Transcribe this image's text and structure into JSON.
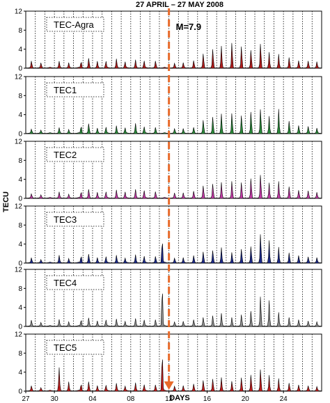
{
  "chart_data": {
    "type": "area",
    "title": "27 APRIL – 27 MAY 2008",
    "xlabel": "DAYS",
    "ylabel": "TECU",
    "ylim": [
      0,
      12
    ],
    "yticks": [
      0,
      4,
      8,
      12
    ],
    "xlim": [
      0,
      31
    ],
    "x_ticks": [
      {
        "day": 0,
        "label": "27"
      },
      {
        "day": 3,
        "label": "30"
      },
      {
        "day": 7,
        "label": "04"
      },
      {
        "day": 11,
        "label": "08"
      },
      {
        "day": 15,
        "label": "12"
      },
      {
        "day": 19,
        "label": "16"
      },
      {
        "day": 23,
        "label": "20"
      },
      {
        "day": 27,
        "label": "24"
      }
    ],
    "grid": "dotted vertical lines at each day",
    "event": {
      "label": "M=7.9",
      "day": 15,
      "color": "#e86a2a"
    },
    "series": [
      {
        "name": "TEC-Agra",
        "color": "#b01c1c",
        "peaks": [
          [
            0.6,
            1.4
          ],
          [
            1.6,
            1.0
          ],
          [
            3.5,
            1.3
          ],
          [
            4.5,
            1.0
          ],
          [
            5.8,
            1.4
          ],
          [
            6.6,
            2.0
          ],
          [
            7.5,
            1.3
          ],
          [
            8.4,
            1.4
          ],
          [
            9.5,
            1.8
          ],
          [
            10.4,
            1.3
          ],
          [
            11.5,
            1.6
          ],
          [
            12.4,
            1.5
          ],
          [
            13.6,
            1.4
          ],
          [
            15.6,
            0.9
          ],
          [
            16.5,
            1.0
          ],
          [
            17.6,
            1.5
          ],
          [
            18.6,
            3.0
          ],
          [
            19.6,
            4.0
          ],
          [
            20.5,
            4.5
          ],
          [
            21.6,
            5.4
          ],
          [
            22.6,
            4.6
          ],
          [
            23.6,
            3.8
          ],
          [
            24.6,
            5.2
          ],
          [
            25.5,
            3.2
          ],
          [
            26.5,
            2.8
          ],
          [
            27.6,
            2.2
          ],
          [
            28.6,
            1.5
          ],
          [
            29.6,
            1.4
          ],
          [
            30.5,
            1.2
          ]
        ]
      },
      {
        "name": "TEC1",
        "color": "#2a8a3a",
        "peaks": [
          [
            0.6,
            0.8
          ],
          [
            1.6,
            0.6
          ],
          [
            3.5,
            1.1
          ],
          [
            4.5,
            0.7
          ],
          [
            5.8,
            1.6
          ],
          [
            6.6,
            2.0
          ],
          [
            7.5,
            1.0
          ],
          [
            8.4,
            1.3
          ],
          [
            9.5,
            1.5
          ],
          [
            10.4,
            1.2
          ],
          [
            11.5,
            2.0
          ],
          [
            12.4,
            1.4
          ],
          [
            13.6,
            1.2
          ],
          [
            15.6,
            0.9
          ],
          [
            16.5,
            0.9
          ],
          [
            17.6,
            1.2
          ],
          [
            18.6,
            2.8
          ],
          [
            19.6,
            3.5
          ],
          [
            20.5,
            4.0
          ],
          [
            21.6,
            4.3
          ],
          [
            22.6,
            3.8
          ],
          [
            23.6,
            4.6
          ],
          [
            24.6,
            5.2
          ],
          [
            25.5,
            3.5
          ],
          [
            26.5,
            5.0
          ],
          [
            27.6,
            2.6
          ],
          [
            28.6,
            1.6
          ],
          [
            29.6,
            1.4
          ],
          [
            30.5,
            1.0
          ]
        ]
      },
      {
        "name": "TEC2",
        "color": "#c23aa6",
        "peaks": [
          [
            0.6,
            0.8
          ],
          [
            1.6,
            0.6
          ],
          [
            3.5,
            1.2
          ],
          [
            4.5,
            0.7
          ],
          [
            5.8,
            1.4
          ],
          [
            6.6,
            1.8
          ],
          [
            7.5,
            1.1
          ],
          [
            8.4,
            1.3
          ],
          [
            9.5,
            1.6
          ],
          [
            10.4,
            1.3
          ],
          [
            11.5,
            1.7
          ],
          [
            12.4,
            1.6
          ],
          [
            13.6,
            1.3
          ],
          [
            15.6,
            1.0
          ],
          [
            16.5,
            1.0
          ],
          [
            17.6,
            1.4
          ],
          [
            18.6,
            2.6
          ],
          [
            19.6,
            3.0
          ],
          [
            20.5,
            3.2
          ],
          [
            21.6,
            3.6
          ],
          [
            22.6,
            3.3
          ],
          [
            23.6,
            4.2
          ],
          [
            24.6,
            5.0
          ],
          [
            25.5,
            3.1
          ],
          [
            26.5,
            3.4
          ],
          [
            27.6,
            2.4
          ],
          [
            28.6,
            1.6
          ],
          [
            29.6,
            1.5
          ],
          [
            30.5,
            1.1
          ]
        ]
      },
      {
        "name": "TEC3",
        "color": "#1c2a8a",
        "peaks": [
          [
            0.6,
            1.0
          ],
          [
            1.6,
            0.6
          ],
          [
            3.5,
            1.5
          ],
          [
            4.5,
            0.8
          ],
          [
            5.8,
            1.5
          ],
          [
            6.6,
            1.8
          ],
          [
            7.5,
            1.0
          ],
          [
            8.4,
            1.3
          ],
          [
            9.5,
            1.5
          ],
          [
            10.4,
            1.0
          ],
          [
            11.5,
            1.6
          ],
          [
            12.4,
            1.4
          ],
          [
            13.6,
            1.3
          ],
          [
            14.3,
            5.0
          ],
          [
            15.6,
            0.9
          ],
          [
            16.5,
            1.0
          ],
          [
            17.6,
            1.5
          ],
          [
            18.6,
            2.3
          ],
          [
            19.6,
            2.6
          ],
          [
            20.5,
            3.1
          ],
          [
            21.6,
            2.2
          ],
          [
            22.6,
            2.9
          ],
          [
            23.6,
            3.5
          ],
          [
            24.6,
            6.2
          ],
          [
            25.5,
            4.6
          ],
          [
            26.5,
            3.2
          ],
          [
            27.6,
            2.1
          ],
          [
            28.6,
            1.5
          ],
          [
            29.6,
            1.2
          ],
          [
            30.5,
            1.0
          ]
        ]
      },
      {
        "name": "TEC4",
        "color": "#8c8c8c",
        "peaks": [
          [
            0.6,
            1.2
          ],
          [
            1.6,
            0.7
          ],
          [
            3.5,
            1.3
          ],
          [
            4.5,
            0.8
          ],
          [
            5.8,
            1.4
          ],
          [
            6.6,
            1.7
          ],
          [
            7.5,
            1.0
          ],
          [
            8.4,
            1.3
          ],
          [
            9.5,
            1.4
          ],
          [
            10.4,
            1.0
          ],
          [
            11.5,
            1.5
          ],
          [
            12.4,
            1.3
          ],
          [
            13.6,
            1.3
          ],
          [
            14.3,
            8.5
          ],
          [
            15.6,
            0.8
          ],
          [
            16.5,
            0.9
          ],
          [
            17.6,
            1.3
          ],
          [
            18.6,
            1.8
          ],
          [
            19.6,
            2.2
          ],
          [
            20.5,
            2.6
          ],
          [
            21.6,
            1.8
          ],
          [
            22.6,
            2.4
          ],
          [
            23.6,
            3.2
          ],
          [
            24.6,
            6.4
          ],
          [
            25.5,
            5.3
          ],
          [
            26.5,
            2.8
          ],
          [
            27.6,
            1.8
          ],
          [
            28.6,
            1.3
          ],
          [
            29.6,
            1.0
          ],
          [
            30.5,
            0.8
          ]
        ]
      },
      {
        "name": "TEC5",
        "color": "#c21c1c",
        "peaks": [
          [
            0.6,
            1.0
          ],
          [
            1.6,
            0.6
          ],
          [
            3.5,
            4.8
          ],
          [
            4.5,
            1.8
          ],
          [
            5.8,
            1.5
          ],
          [
            6.6,
            1.9
          ],
          [
            7.5,
            1.0
          ],
          [
            8.4,
            1.2
          ],
          [
            9.5,
            1.5
          ],
          [
            10.4,
            1.0
          ],
          [
            11.5,
            1.6
          ],
          [
            12.4,
            1.3
          ],
          [
            13.6,
            1.2
          ],
          [
            14.3,
            8.2
          ],
          [
            15.6,
            0.9
          ],
          [
            16.5,
            1.0
          ],
          [
            17.6,
            1.4
          ],
          [
            18.6,
            2.2
          ],
          [
            19.6,
            2.5
          ],
          [
            20.5,
            2.7
          ],
          [
            21.6,
            2.0
          ],
          [
            22.6,
            2.8
          ],
          [
            23.6,
            3.4
          ],
          [
            24.6,
            4.6
          ],
          [
            25.5,
            3.2
          ],
          [
            26.5,
            2.5
          ],
          [
            27.6,
            1.6
          ],
          [
            28.6,
            1.2
          ],
          [
            29.6,
            1.0
          ],
          [
            30.5,
            0.8
          ]
        ]
      }
    ]
  }
}
